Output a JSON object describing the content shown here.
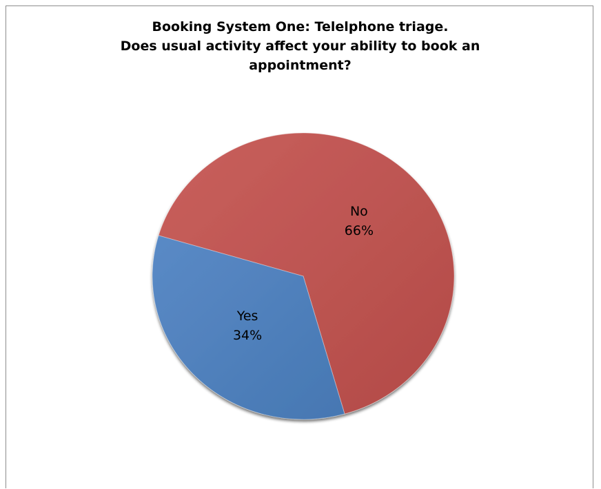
{
  "chart_data": {
    "type": "pie",
    "title_lines": [
      "Booking System One: Telelphone triage.",
      "Does usual activity affect your ability to book an",
      "appointment?"
    ],
    "slices": [
      {
        "label": "No",
        "value": 66,
        "value_label": "66%",
        "color": "#c0504d"
      },
      {
        "label": "Yes",
        "value": 34,
        "value_label": "34%",
        "color": "#4f81bd"
      }
    ],
    "legend": "none"
  }
}
